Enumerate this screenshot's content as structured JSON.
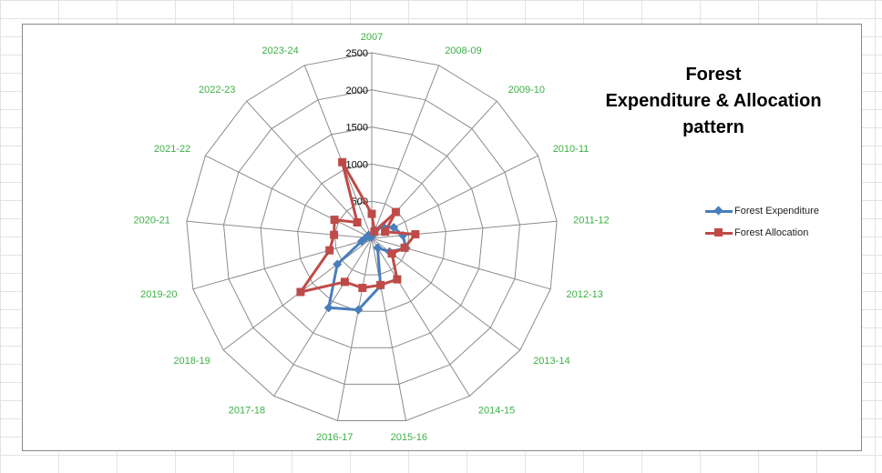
{
  "chart_data": {
    "type": "radar",
    "title_lines": [
      "Forest",
      "Expenditure & Allocation",
      "pattern"
    ],
    "categories": [
      "2007",
      "2008-09",
      "2009-10",
      "2010-11",
      "2011-12",
      "2012-13",
      "2013-14",
      "2014-15",
      "2015-16",
      "2016-17",
      "2017-18",
      "2018-19",
      "2019-20",
      "2020-21",
      "2021-22",
      "2022-23",
      "2023-24"
    ],
    "r_ticks": [
      0,
      500,
      1000,
      1500,
      2000,
      2500
    ],
    "r_tick_labels": [
      "0",
      "500",
      "1000",
      "1500",
      "2000",
      "2500"
    ],
    "rlim": [
      0,
      2500
    ],
    "legend_position": "right",
    "series": [
      {
        "name": "Forest Expenditure",
        "color": "#4a7ebb",
        "marker": "diamond",
        "values": [
          40,
          120,
          220,
          330,
          420,
          480,
          300,
          150,
          650,
          980,
          1100,
          580,
          140,
          80,
          40,
          60,
          20
        ]
      },
      {
        "name": "Forest Allocation",
        "color": "#be4b48",
        "marker": "square",
        "values": [
          330,
          100,
          480,
          200,
          590,
          460,
          340,
          650,
          640,
          680,
          690,
          1200,
          590,
          510,
          560,
          290,
          1100
        ]
      }
    ]
  }
}
